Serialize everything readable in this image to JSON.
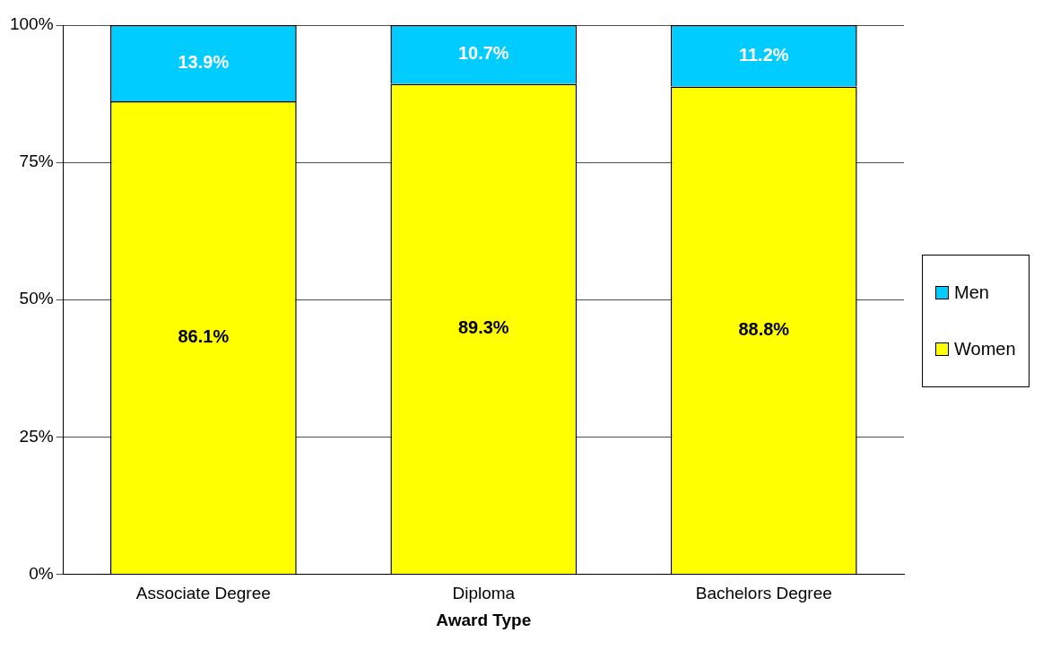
{
  "chart_data": {
    "type": "bar",
    "stacked": true,
    "xlabel": "Award Type",
    "categories": [
      "Associate Degree",
      "Diploma",
      "Bachelors Degree"
    ],
    "series": [
      {
        "name": "Women",
        "color": "#ffff00",
        "values": [
          86.1,
          89.3,
          88.8
        ],
        "value_labels": [
          "86.1%",
          "89.3%",
          "88.8%"
        ]
      },
      {
        "name": "Men",
        "color": "#00ccff",
        "values": [
          13.9,
          10.7,
          11.2
        ],
        "value_labels": [
          "13.9%",
          "10.7%",
          "11.2%"
        ]
      }
    ],
    "ylim": [
      0,
      100
    ],
    "yticks": [
      {
        "value": 0,
        "label": "0%"
      },
      {
        "value": 25,
        "label": "25%"
      },
      {
        "value": 50,
        "label": "50%"
      },
      {
        "value": 75,
        "label": "75%"
      },
      {
        "value": 100,
        "label": "100%"
      }
    ],
    "grid": "y",
    "legend": "right"
  }
}
